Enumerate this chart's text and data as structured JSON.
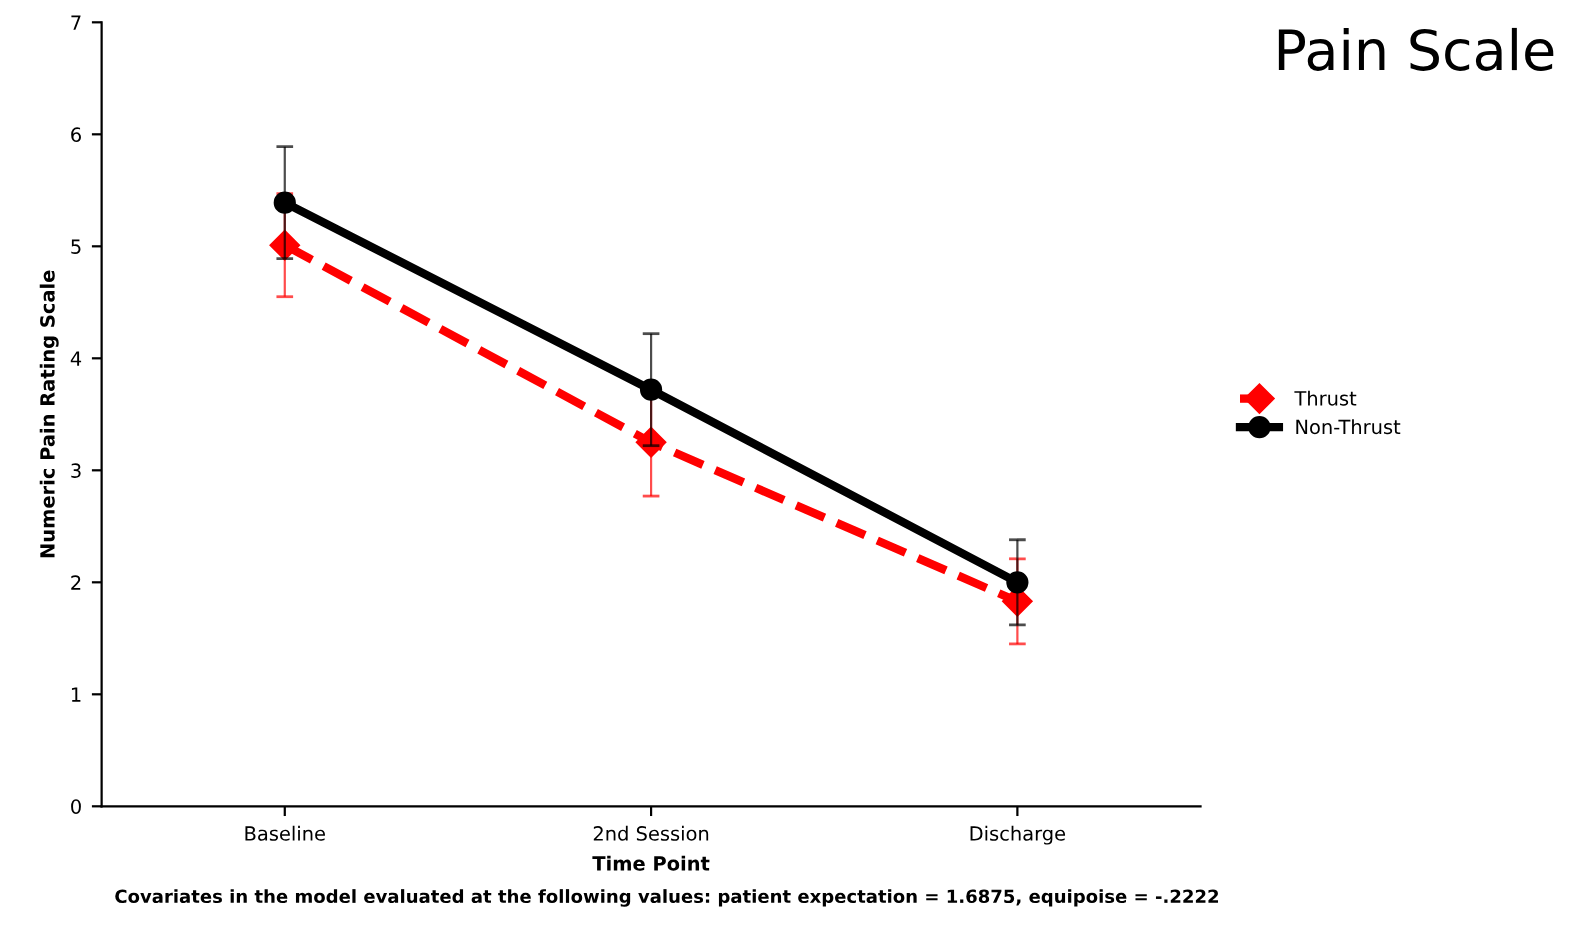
{
  "chart_data": {
    "type": "line",
    "title": "Pain Scale",
    "xlabel": "Time Point",
    "ylabel": "Numeric Pain Rating Scale",
    "categories": [
      "Baseline",
      "2nd Session",
      "Discharge"
    ],
    "series": [
      {
        "name": "Thrust",
        "color": "#ff0000",
        "values": [
          5.01,
          3.25,
          1.83
        ],
        "errors": [
          0.46,
          0.48,
          0.38
        ],
        "marker": "diamond",
        "line_style": "dashed"
      },
      {
        "name": "Non-Thrust",
        "color": "#000000",
        "values": [
          5.39,
          3.72,
          2.0
        ],
        "errors": [
          0.5,
          0.5,
          0.38
        ],
        "marker": "circle",
        "line_style": "solid"
      }
    ],
    "ylim": [
      0,
      7
    ],
    "yticks": [
      0,
      1,
      2,
      3,
      4,
      5,
      6,
      7
    ],
    "grid": false,
    "legend": "right",
    "annotations": [
      "Covariates in the model evaluated at the following values: patient expectation = 1.6875, equipoise = -.2222"
    ]
  }
}
